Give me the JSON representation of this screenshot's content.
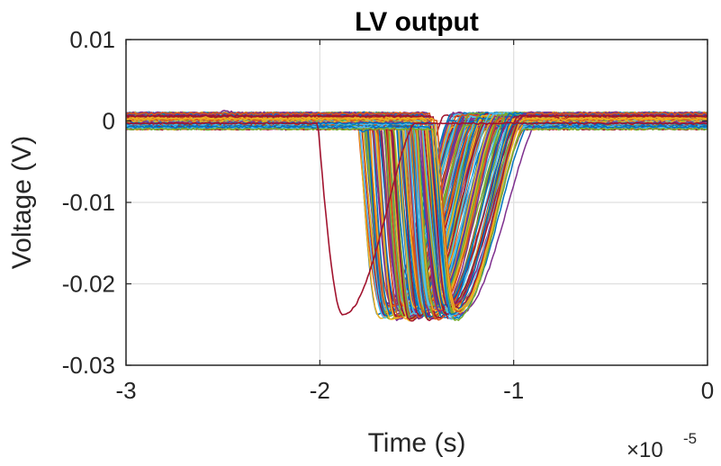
{
  "chart_data": {
    "type": "line",
    "title": "LV output",
    "xlabel": "Time (s)",
    "ylabel": "Voltage (V)",
    "x_multiplier": {
      "base": "×10",
      "exponent": "-5"
    },
    "xlim": [
      -3,
      0
    ],
    "ylim": [
      -0.03,
      0.01
    ],
    "xticks": [
      -3,
      -2,
      -1,
      0
    ],
    "xtick_labels": [
      "-3",
      "-2",
      "-1",
      "0"
    ],
    "yticks": [
      -0.03,
      -0.02,
      -0.01,
      0,
      0.01
    ],
    "ytick_labels": [
      "-0.03",
      "-0.02",
      "-0.01",
      "0",
      "0.01"
    ],
    "grid": true,
    "colors": [
      "#0072BD",
      "#D95319",
      "#EDB120",
      "#7E2F8E",
      "#77AC30",
      "#4DBEEE",
      "#A2142F"
    ],
    "series_description": "Many overlaid voltage traces: baseline near 0 V with negative pulses of about -0.0235 V",
    "pulse_depth": -0.0235,
    "pulse_onset_range": [
      -1.8,
      -1.4
    ],
    "outlier_pulse": {
      "onset": -2.01,
      "minimum_time": -1.88,
      "minimum": -0.0235
    },
    "num_traces": 150
  }
}
